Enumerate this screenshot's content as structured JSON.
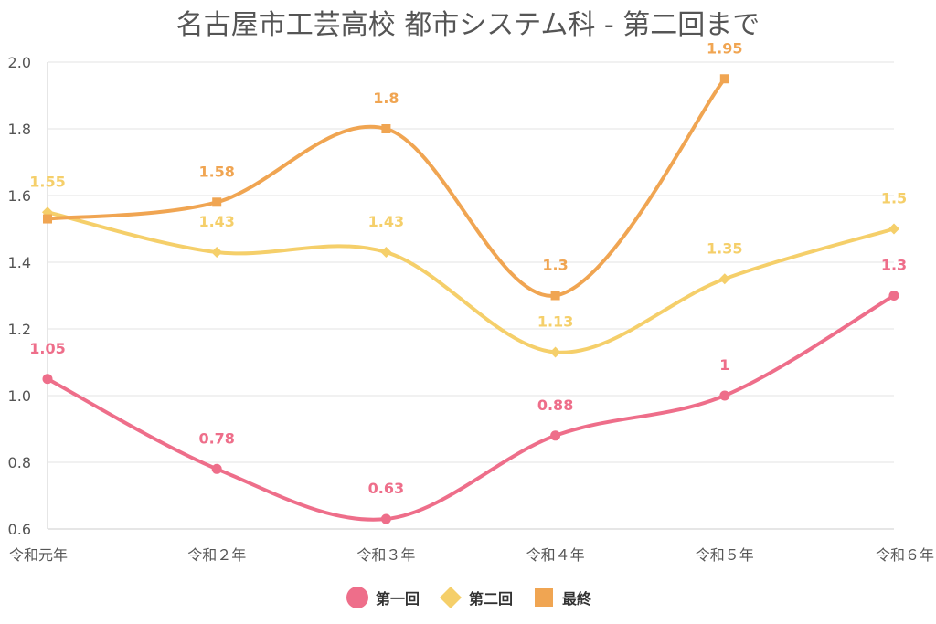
{
  "chart_data": {
    "type": "line",
    "title": "名古屋市工芸高校 都市システム科 - 第二回まで",
    "categories": [
      "令和元年",
      "令和２年",
      "令和３年",
      "令和４年",
      "令和５年",
      "令和６年"
    ],
    "ylim": [
      0.6,
      2.0
    ],
    "yticks": [
      "0.6",
      "0.8",
      "1.0",
      "1.2",
      "1.4",
      "1.6",
      "1.8",
      "2.0"
    ],
    "grid": true,
    "legend_position": "bottom",
    "series": [
      {
        "name": "第一回",
        "color": "#ee6e8a",
        "marker": "circle",
        "values": [
          1.05,
          0.78,
          0.63,
          0.88,
          1,
          1.3
        ]
      },
      {
        "name": "第二回",
        "color": "#f5cf6a",
        "marker": "diamond",
        "values": [
          1.55,
          1.43,
          1.43,
          1.13,
          1.35,
          1.5
        ]
      },
      {
        "name": "最終",
        "color": "#f0a552",
        "marker": "square",
        "values": [
          1.53,
          1.58,
          1.8,
          1.3,
          1.95,
          null
        ]
      }
    ],
    "data_labels": [
      [
        "1.05",
        "0.78",
        "0.63",
        "0.88",
        "1",
        "1.3"
      ],
      [
        "1.55",
        "1.43",
        "1.43",
        "1.13",
        "1.35",
        "1.5"
      ],
      [
        "",
        "1.58",
        "1.8",
        "1.3",
        "1.95",
        ""
      ]
    ]
  }
}
